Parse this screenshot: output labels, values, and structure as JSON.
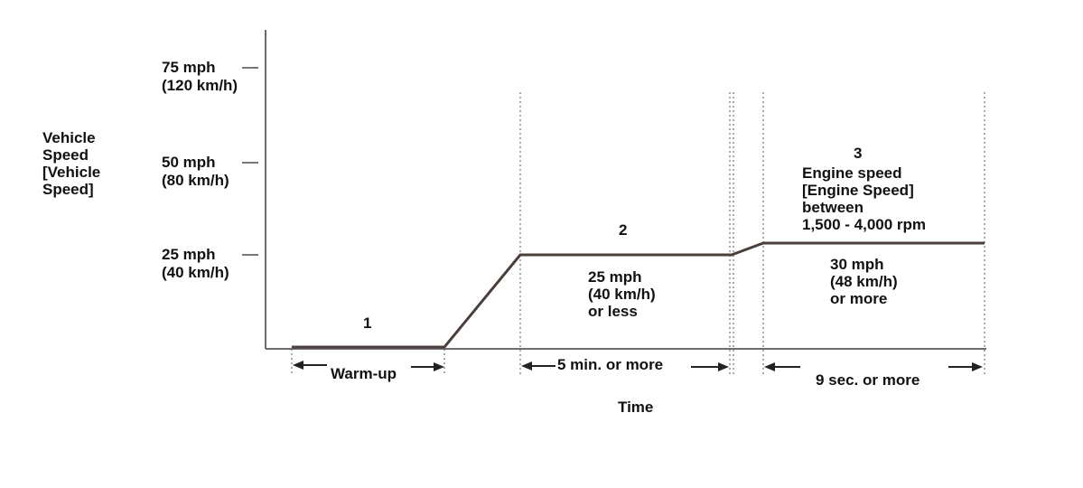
{
  "y_axis": {
    "label": "Vehicle\nSpeed\n[Vehicle\nSpeed]",
    "ticks": [
      {
        "mph": "75 mph",
        "kmh": "(120 km/h)"
      },
      {
        "mph": "50 mph",
        "kmh": "(80 km/h)"
      },
      {
        "mph": "25 mph",
        "kmh": "(40 km/h)"
      }
    ]
  },
  "x_axis": {
    "label": "Time"
  },
  "phases": [
    {
      "number": "1",
      "duration": "Warm-up",
      "note": ""
    },
    {
      "number": "2",
      "duration": "5 min. or more",
      "note": "25 mph\n(40 km/h)\nor less"
    },
    {
      "number": "3",
      "duration": "9 sec. or more",
      "note": "30 mph\n(48 km/h)\nor more",
      "condition": "Engine speed\n[Engine Speed]\nbetween\n1,500 - 4,000 rpm"
    }
  ],
  "colors": {
    "trace": "#4a3f3a",
    "axis": "#6b6b6b",
    "guide": "#555555",
    "text": "#111111"
  }
}
